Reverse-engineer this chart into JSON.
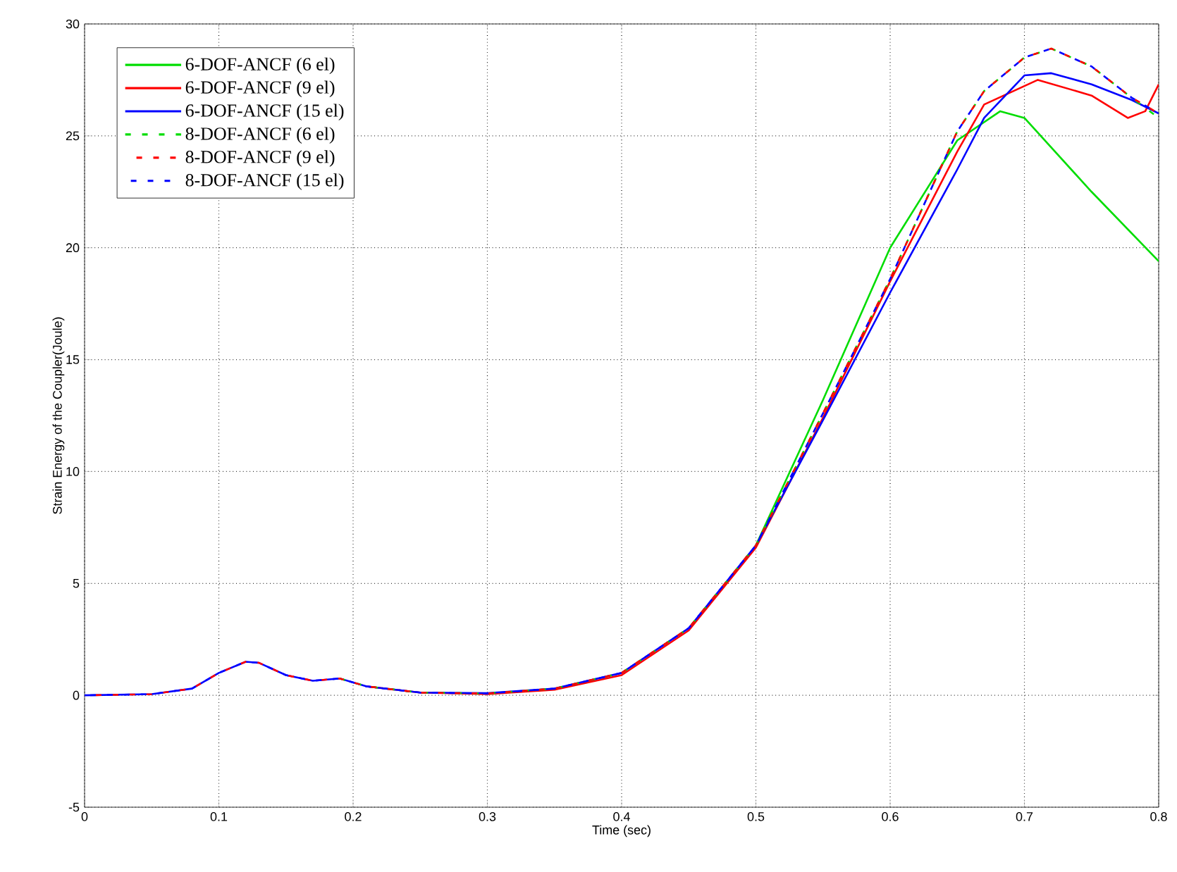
{
  "chart_data": {
    "type": "line",
    "xlabel": "Time (sec)",
    "ylabel": "Strain Energy of the Coupler(Joule)",
    "xlim": [
      0,
      0.8
    ],
    "ylim": [
      -5,
      30
    ],
    "xticks": [
      0,
      0.1,
      0.2,
      0.3,
      0.4,
      0.5,
      0.6,
      0.7,
      0.8
    ],
    "yticks": [
      -5,
      0,
      5,
      10,
      15,
      20,
      25,
      30
    ],
    "grid": true,
    "legend": "top left",
    "series": [
      {
        "name": "6-DOF-ANCF (6 el)",
        "color": "#00dd00",
        "line_style": "solid",
        "x": [
          0.5,
          0.55,
          0.6,
          0.65,
          0.682,
          0.7,
          0.75,
          0.8
        ],
        "values": [
          6.7,
          13.2,
          20.0,
          24.8,
          26.1,
          25.8,
          22.5,
          19.4
        ]
      },
      {
        "name": "6-DOF-ANCF (9 el)",
        "color": "#ff0000",
        "line_style": "solid",
        "x": [
          0.21,
          0.25,
          0.3,
          0.35,
          0.4,
          0.45,
          0.5,
          0.55,
          0.6,
          0.65,
          0.67,
          0.71,
          0.75,
          0.777,
          0.79,
          0.8
        ],
        "values": [
          0.4,
          0.12,
          0.05,
          0.25,
          0.9,
          2.9,
          6.6,
          12.4,
          18.5,
          24.3,
          26.4,
          27.5,
          26.8,
          25.8,
          26.1,
          27.3
        ]
      },
      {
        "name": "6-DOF-ANCF (15 el)",
        "color": "#0000ff",
        "line_style": "solid",
        "x": [
          0,
          0.05,
          0.08,
          0.1,
          0.12,
          0.13,
          0.15,
          0.17,
          0.19,
          0.21,
          0.25,
          0.3,
          0.35,
          0.4,
          0.45,
          0.5,
          0.55,
          0.6,
          0.65,
          0.67,
          0.7,
          0.72,
          0.75,
          0.78,
          0.8
        ],
        "values": [
          0,
          0.05,
          0.3,
          1.0,
          1.5,
          1.45,
          0.9,
          0.65,
          0.75,
          0.4,
          0.12,
          0.1,
          0.3,
          1.0,
          3.0,
          6.7,
          12.3,
          18.0,
          23.5,
          25.8,
          27.7,
          27.8,
          27.3,
          26.6,
          26.0
        ]
      },
      {
        "name": "8-DOF-ANCF (6 el)",
        "color": "#00dd00",
        "line_style": "dashed",
        "x": [
          0.19,
          0.21,
          0.25,
          0.3,
          0.35,
          0.4,
          0.45,
          0.5,
          0.55,
          0.6,
          0.65,
          0.67,
          0.7,
          0.72,
          0.75,
          0.78,
          0.8
        ],
        "values": [
          0.75,
          0.4,
          0.12,
          0.08,
          0.3,
          1.0,
          3.0,
          6.7,
          12.6,
          18.6,
          25.2,
          27.0,
          28.5,
          28.9,
          28.1,
          26.7,
          25.8
        ]
      },
      {
        "name": "8-DOF-ANCF (9 el)",
        "color": "#ff0000",
        "line_style": "dashed",
        "x": [
          0,
          0.05,
          0.08,
          0.1,
          0.12,
          0.13,
          0.15,
          0.17,
          0.19,
          0.21,
          0.25,
          0.3,
          0.35,
          0.4,
          0.45,
          0.5,
          0.55,
          0.6,
          0.65,
          0.67,
          0.7,
          0.72,
          0.75,
          0.78,
          0.8
        ],
        "values": [
          0,
          0.05,
          0.3,
          1.0,
          1.5,
          1.45,
          0.9,
          0.65,
          0.75,
          0.4,
          0.12,
          0.08,
          0.3,
          1.0,
          3.0,
          6.7,
          12.6,
          18.6,
          25.2,
          27.0,
          28.5,
          28.9,
          28.1,
          26.7,
          26.0
        ]
      },
      {
        "name": "8-DOF-ANCF (15 el)",
        "color": "#0000ff",
        "line_style": "dashed",
        "x": [
          0,
          0.05,
          0.08,
          0.1,
          0.12,
          0.13,
          0.15,
          0.17,
          0.19,
          0.21,
          0.25,
          0.3,
          0.35,
          0.4,
          0.45,
          0.5,
          0.55,
          0.6,
          0.65,
          0.67,
          0.7,
          0.72,
          0.75,
          0.78,
          0.8
        ],
        "values": [
          0,
          0.05,
          0.3,
          1.0,
          1.5,
          1.45,
          0.9,
          0.65,
          0.75,
          0.4,
          0.12,
          0.08,
          0.3,
          1.0,
          3.0,
          6.7,
          12.6,
          18.6,
          25.2,
          27.0,
          28.5,
          28.9,
          28.1,
          26.7,
          26.0
        ]
      }
    ]
  }
}
